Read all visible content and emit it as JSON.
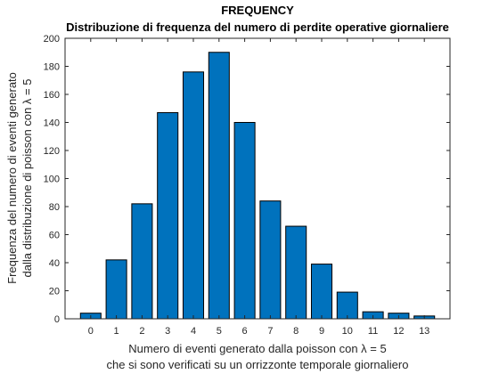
{
  "chart_data": {
    "type": "bar",
    "title": "FREQUENCY",
    "subtitle": "Distribuzione di frequenza del numero di perdite operative giornaliere",
    "xlabel": [
      "Numero di eventi generato dalla poisson con λ = 5",
      "che si sono verificati su un orrizzonte temporale giornaliero"
    ],
    "ylabel": [
      "Frequenza del numero di eventi generato",
      "dalla distribuzione di poisson con λ = 5"
    ],
    "categories": [
      "0",
      "1",
      "2",
      "3",
      "4",
      "5",
      "6",
      "7",
      "8",
      "9",
      "10",
      "11",
      "12",
      "13"
    ],
    "values": [
      4,
      42,
      82,
      147,
      176,
      190,
      140,
      84,
      66,
      39,
      19,
      5,
      4,
      2
    ],
    "xlim": [
      -1,
      14
    ],
    "ylim": [
      0,
      200
    ],
    "yticks": [
      0,
      20,
      40,
      60,
      80,
      100,
      120,
      140,
      160,
      180,
      200
    ],
    "bar_color": "#0072BD",
    "grid": false,
    "legend": "none"
  }
}
